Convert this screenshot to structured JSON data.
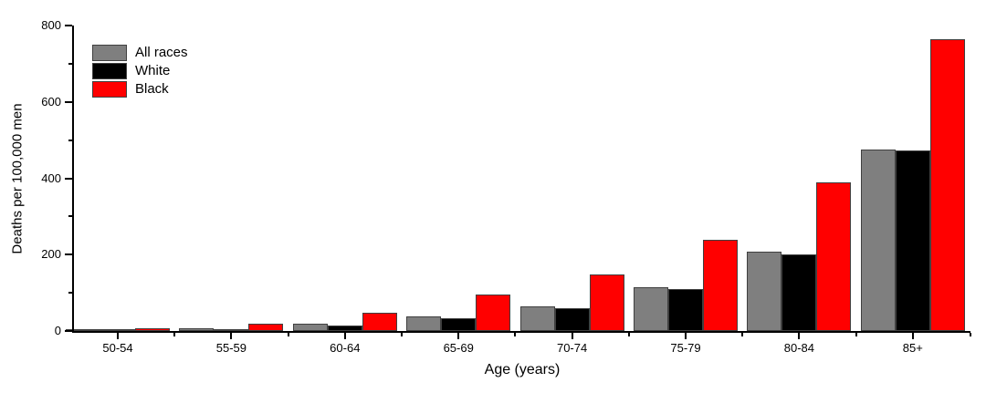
{
  "chart_data": {
    "type": "bar",
    "title": "",
    "xlabel": "Age (years)",
    "ylabel": "Deaths per 100,000 men",
    "categories": [
      "50-54",
      "55-59",
      "60-64",
      "65-69",
      "70-74",
      "75-79",
      "80-84",
      "85+"
    ],
    "series": [
      {
        "name": "All races",
        "color": "#7f7f7f",
        "values": [
          2,
          8,
          20,
          38,
          65,
          115,
          207,
          475
        ]
      },
      {
        "name": "White",
        "color": "#000000",
        "values": [
          1.5,
          5,
          15,
          33,
          60,
          110,
          200,
          473
        ]
      },
      {
        "name": "Black",
        "color": "#ff0000",
        "values": [
          7,
          20,
          48,
          95,
          148,
          238,
          390,
          765
        ]
      }
    ],
    "ylim": [
      0,
      800
    ],
    "yticks": [
      0,
      200,
      400,
      600,
      800
    ],
    "yticks_minor": [
      100,
      300,
      500,
      700
    ],
    "legend_position": "top-left",
    "grid": false,
    "bar_border_color": "#404040",
    "axis_color": "#000000"
  }
}
